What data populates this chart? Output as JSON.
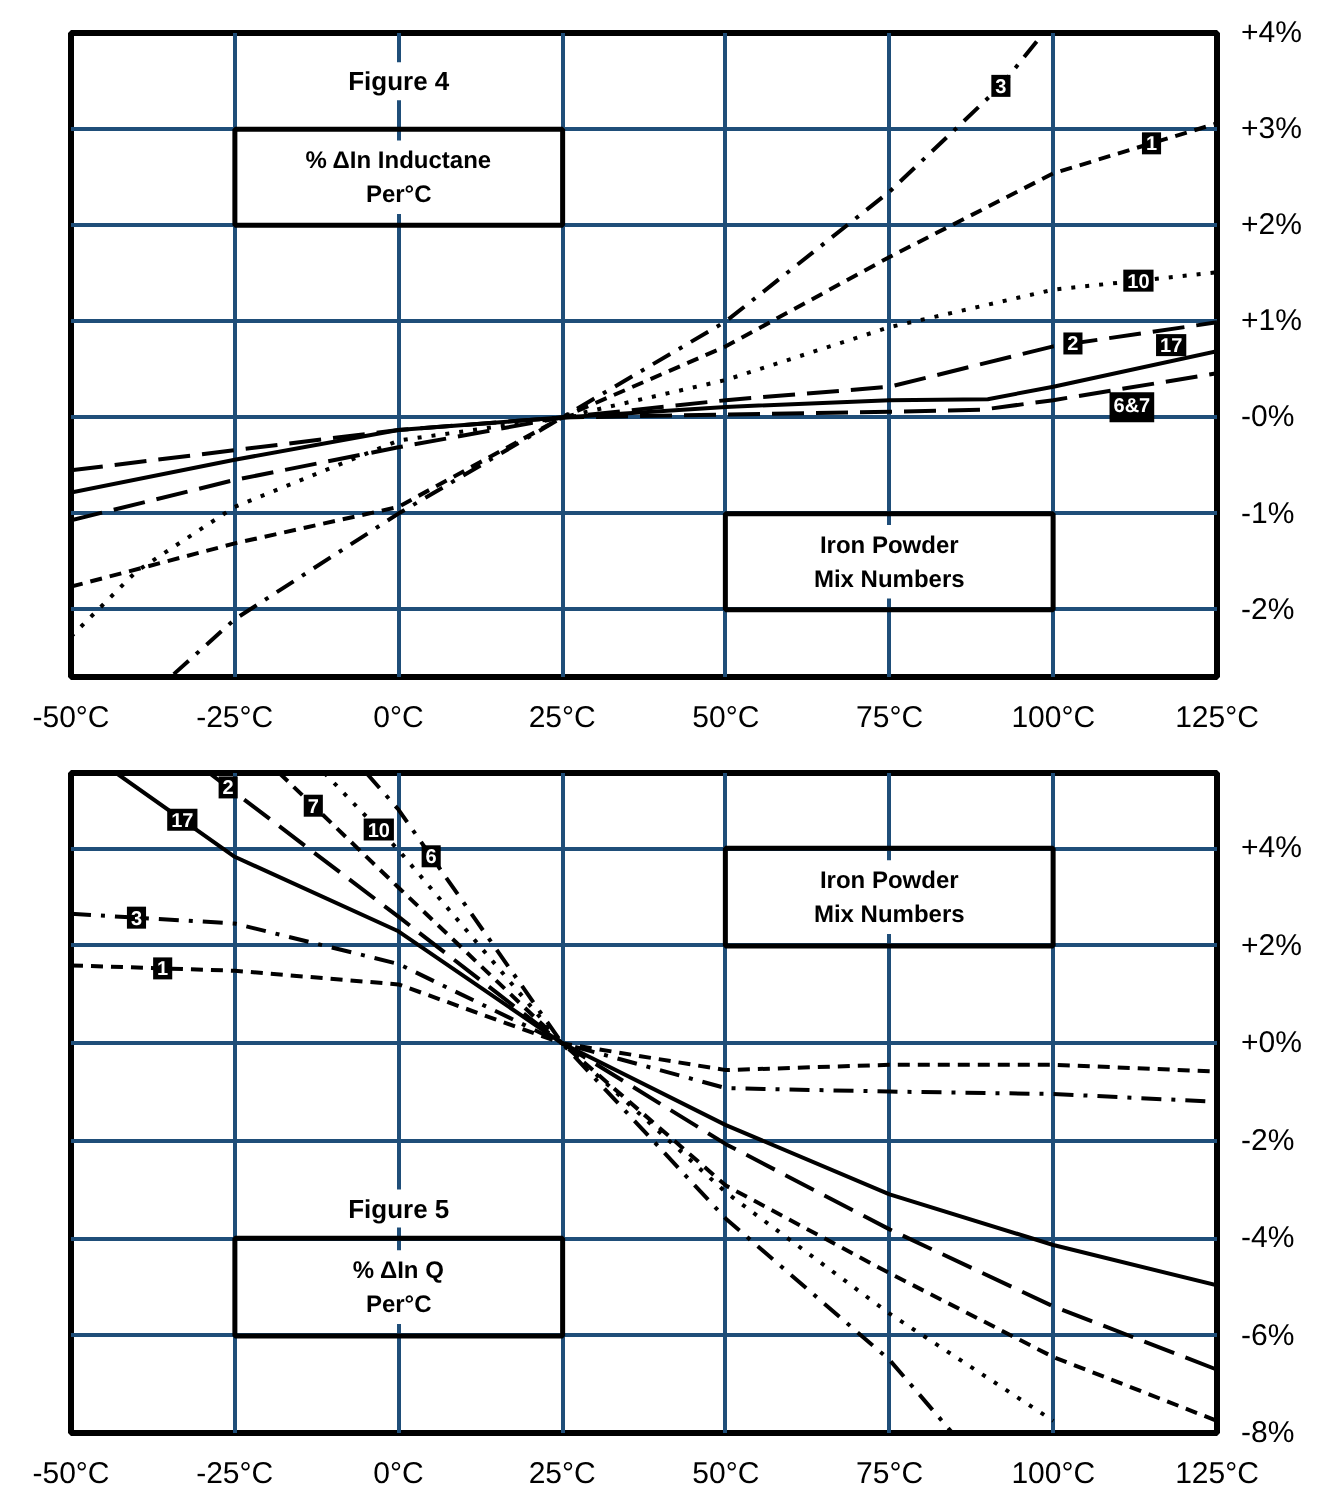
{
  "chart_data": [
    {
      "type": "line",
      "title": "Figure 4",
      "subtitle": "% ΔIn Inductane\nPer°C",
      "legend_title": "Iron Powder\nMix Numbers",
      "grid": true,
      "xlim": [
        -50,
        125
      ],
      "xticks": [
        {
          "value": -50,
          "label": "-50°C"
        },
        {
          "value": -25,
          "label": "-25°C"
        },
        {
          "value": 0,
          "label": "0°C"
        },
        {
          "value": 25,
          "label": "25°C"
        },
        {
          "value": 50,
          "label": "50°C"
        },
        {
          "value": 75,
          "label": "75°C"
        },
        {
          "value": 100,
          "label": "100°C"
        },
        {
          "value": 125,
          "label": "125°C"
        }
      ],
      "ylim": [
        -2.7,
        4
      ],
      "yticks": [
        {
          "value": 4,
          "label": "+4%"
        },
        {
          "value": 3,
          "label": "+3%"
        },
        {
          "value": 2,
          "label": "+2%"
        },
        {
          "value": 1,
          "label": "+1%"
        },
        {
          "value": 0,
          "label": "-0%"
        },
        {
          "value": -1,
          "label": "-1%"
        },
        {
          "value": -2,
          "label": "-2%"
        }
      ],
      "series": [
        {
          "name": "3",
          "color": "#000000",
          "line_style": "dashdot",
          "x": [
            -34.3,
            -25,
            0,
            25,
            50,
            75,
            92,
            98.5
          ],
          "values": [
            -2.67,
            -2.1,
            -1.0,
            0,
            1.0,
            2.35,
            3.45,
            4.0
          ]
        },
        {
          "name": "1",
          "color": "#000000",
          "line_style": "dashed",
          "x": [
            -50,
            -25,
            0,
            25,
            50,
            75,
            100,
            125
          ],
          "values": [
            -1.76,
            -1.31,
            -0.93,
            0,
            0.74,
            1.67,
            2.54,
            3.06
          ]
        },
        {
          "name": "10",
          "color": "#000000",
          "line_style": "dotted",
          "x": [
            -50,
            -40,
            -25,
            0,
            25,
            50,
            75,
            100,
            125
          ],
          "values": [
            -2.28,
            -1.6,
            -0.93,
            -0.24,
            0,
            0.39,
            0.94,
            1.33,
            1.51
          ]
        },
        {
          "name": "2",
          "color": "#000000",
          "line_style": "longdash",
          "x": [
            -50,
            -25,
            0,
            25,
            50,
            75,
            100,
            125
          ],
          "values": [
            -1.07,
            -0.65,
            -0.31,
            0,
            0.18,
            0.32,
            0.74,
            0.99
          ]
        },
        {
          "name": "17",
          "color": "#000000",
          "line_style": "solid",
          "x": [
            -50,
            -25,
            0,
            25,
            50,
            75,
            90,
            100,
            125
          ],
          "values": [
            -0.78,
            -0.44,
            -0.13,
            0,
            0.11,
            0.18,
            0.19,
            0.32,
            0.69
          ]
        },
        {
          "name": "6&7",
          "color": "#000000",
          "line_style": "longdash",
          "x": [
            -50,
            -25,
            0,
            25,
            50,
            75,
            89,
            100,
            125
          ],
          "values": [
            -0.55,
            -0.34,
            -0.13,
            0,
            0.03,
            0.06,
            0.08,
            0.18,
            0.46
          ]
        }
      ]
    },
    {
      "type": "line",
      "title": "Figure 5",
      "subtitle": "% ΔIn Q\nPer°C",
      "legend_title": "Iron Powder\nMix Numbers",
      "grid": true,
      "xlim": [
        -50,
        125
      ],
      "xticks": [
        {
          "value": -50,
          "label": "-50°C"
        },
        {
          "value": -25,
          "label": "-25°C"
        },
        {
          "value": 0,
          "label": "0°C"
        },
        {
          "value": 25,
          "label": "25°C"
        },
        {
          "value": 50,
          "label": "50°C"
        },
        {
          "value": 75,
          "label": "75°C"
        },
        {
          "value": 100,
          "label": "100°C"
        },
        {
          "value": 125,
          "label": "125°C"
        }
      ],
      "ylim": [
        -8,
        5.55
      ],
      "yticks": [
        {
          "value": 4,
          "label": "+4%"
        },
        {
          "value": 2,
          "label": "+2%"
        },
        {
          "value": 0,
          "label": "+0%"
        },
        {
          "value": -2,
          "label": "-2%"
        },
        {
          "value": -4,
          "label": "-4%"
        },
        {
          "value": -6,
          "label": "-6%"
        },
        {
          "value": -8,
          "label": "-8%"
        }
      ],
      "series": [
        {
          "name": "17",
          "color": "#000000",
          "line_style": "solid",
          "x": [
            -43.1,
            -25,
            0,
            25,
            50,
            75,
            100,
            125
          ],
          "values": [
            5.55,
            3.83,
            2.3,
            0,
            -1.68,
            -3.1,
            -4.14,
            -4.97
          ]
        },
        {
          "name": "2",
          "color": "#000000",
          "line_style": "longdash",
          "x": [
            -28.9,
            0,
            25,
            50,
            75,
            100,
            125
          ],
          "values": [
            5.55,
            2.6,
            0,
            -2.07,
            -3.82,
            -5.4,
            -6.7
          ]
        },
        {
          "name": "7",
          "color": "#000000",
          "line_style": "dashed",
          "x": [
            -18.2,
            0,
            25,
            50,
            75,
            100,
            125
          ],
          "values": [
            5.55,
            3.2,
            0,
            -2.92,
            -4.72,
            -6.44,
            -7.75
          ]
        },
        {
          "name": "10",
          "color": "#000000",
          "line_style": "dotted",
          "x": [
            -11.3,
            0,
            25,
            50,
            75,
            100
          ],
          "values": [
            5.55,
            3.97,
            0,
            -3.06,
            -5.55,
            -7.75
          ]
        },
        {
          "name": "6",
          "color": "#000000",
          "line_style": "dashdot",
          "x": [
            -4.9,
            0,
            25,
            50,
            75,
            84.6
          ],
          "values": [
            5.55,
            4.8,
            0,
            -3.6,
            -6.5,
            -8
          ]
        },
        {
          "name": "3",
          "color": "#000000",
          "line_style": "dashdot",
          "x": [
            -50,
            -25,
            0,
            25,
            50,
            75,
            100,
            125
          ],
          "values": [
            2.66,
            2.46,
            1.63,
            0,
            -0.92,
            -0.99,
            -1.04,
            -1.2
          ]
        },
        {
          "name": "1",
          "color": "#000000",
          "line_style": "dashed",
          "x": [
            -50,
            -25,
            0,
            25,
            50,
            75,
            100,
            125
          ],
          "values": [
            1.6,
            1.49,
            1.21,
            0,
            -0.55,
            -0.44,
            -0.44,
            -0.58
          ]
        }
      ]
    }
  ]
}
